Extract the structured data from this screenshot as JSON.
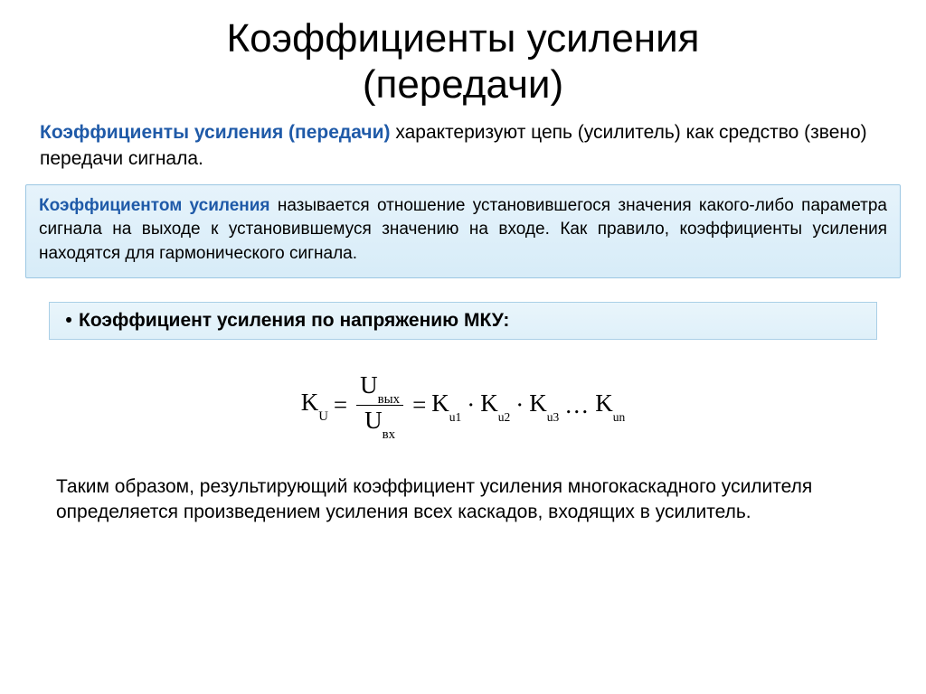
{
  "title_line1": "Коэффициенты усиления",
  "title_line2": "(передачи)",
  "intro_lead": "Коэффициенты усиления (передачи)",
  "intro_rest": " характеризуют цепь (усилитель) как средство (звено) передачи сигнала.",
  "def_lead": "Коэффициентом усиления",
  "def_rest": " называется отношение установившегося значения какого-либо параметра сигнала на выходе к установившемуся значению на входе. Как правило, коэффициенты усиления находятся для гармонического сигнала.",
  "bullet_text": "Коэффициент усиления по напряжению МКУ:",
  "formula": {
    "K": "K",
    "U_sub": "U",
    "eq": "=",
    "num_U": "U",
    "num_sub": "вых",
    "den_U": "U",
    "den_sub": "вх",
    "rhs_K": "K",
    "s1": "u1",
    "dot": "·",
    "s2": "u2",
    "s3": "u3",
    "dots": "…",
    "sn": "un"
  },
  "summary": "Таким образом, результирующий коэффициент усиления многокаскадного усилителя определяется произведением усиления всех каскадов, входящих в усилитель.",
  "colors": {
    "accent": "#1f5aa8",
    "box_border": "#9cc7e3",
    "box_bg_top": "#e6f3fb",
    "box_bg_bot": "#d7ecf8"
  }
}
